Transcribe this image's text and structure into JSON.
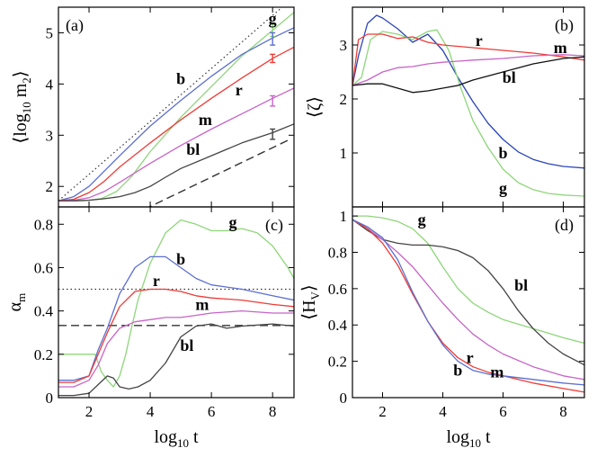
{
  "colors": {
    "g": "#8ed67a",
    "b": "#5b6fd0",
    "r": "#ee3b36",
    "m": "#c764c7",
    "bl": "#444444",
    "b_dark": "#2a44b8",
    "g_dark": "#4cc23c",
    "bl_dark": "#111111"
  },
  "chart_data": [
    {
      "panel": "a",
      "type": "line",
      "panel_label": "(a)",
      "ylabel": "⟨log",
      "ylabel_sub": "10",
      "ylabel_rest": " m",
      "ylabel_sub2": "2",
      "ylabel_end": "⟩",
      "xlim": [
        1,
        8.7
      ],
      "ylim": [
        1.6,
        5.5
      ],
      "yticks": [
        "2",
        "3",
        "4",
        "5"
      ],
      "ytick_values": [
        2,
        3,
        4,
        5
      ],
      "xtick_values": [
        2,
        4,
        6,
        8
      ],
      "series": [
        {
          "key": "dotted",
          "x": [
            1,
            8.7
          ],
          "y": [
            1.72,
            5.7
          ]
        },
        {
          "key": "dashed",
          "x": [
            3.8,
            8.5
          ],
          "y": [
            1.55,
            2.9
          ]
        },
        {
          "key": "g",
          "name": "g",
          "x": [
            1,
            1.8,
            2.4,
            2.9,
            3.4,
            4.0,
            5.0,
            6.0,
            7.0,
            8.0,
            8.7
          ],
          "y": [
            1.72,
            1.72,
            1.76,
            1.9,
            2.2,
            2.68,
            3.35,
            3.95,
            4.55,
            5.05,
            5.4
          ]
        },
        {
          "key": "b",
          "name": "b",
          "x": [
            1,
            1.5,
            2.0,
            2.5,
            3.0,
            4.0,
            5.0,
            6.0,
            7.0,
            8.0,
            8.7
          ],
          "y": [
            1.72,
            1.8,
            2.0,
            2.3,
            2.6,
            3.18,
            3.68,
            4.15,
            4.58,
            4.9,
            5.1
          ]
        },
        {
          "key": "r",
          "name": "r",
          "x": [
            1,
            1.5,
            2.0,
            2.5,
            3.0,
            4.0,
            5.0,
            6.0,
            7.0,
            8.0,
            8.7
          ],
          "y": [
            1.72,
            1.75,
            1.88,
            2.1,
            2.38,
            2.85,
            3.3,
            3.72,
            4.12,
            4.5,
            4.72
          ]
        },
        {
          "key": "m",
          "name": "m",
          "x": [
            1,
            1.5,
            2.0,
            2.5,
            3.0,
            4.0,
            5.0,
            6.0,
            7.0,
            8.0,
            8.7
          ],
          "y": [
            1.72,
            1.73,
            1.78,
            1.9,
            2.08,
            2.45,
            2.8,
            3.12,
            3.42,
            3.72,
            3.92
          ]
        },
        {
          "key": "bl",
          "name": "bl",
          "x": [
            1,
            1.5,
            2.0,
            2.5,
            3.0,
            3.5,
            4.0,
            4.5,
            5.0,
            6.0,
            7.0,
            8.0,
            8.7
          ],
          "y": [
            1.72,
            1.72,
            1.73,
            1.76,
            1.8,
            1.88,
            2.0,
            2.18,
            2.35,
            2.6,
            2.85,
            3.05,
            3.22
          ]
        }
      ],
      "error_bars": [
        {
          "key": "g",
          "x": 8.0,
          "y": 5.05,
          "err": 0.12
        },
        {
          "key": "b",
          "x": 8.0,
          "y": 4.88,
          "err": 0.12
        },
        {
          "key": "r",
          "x": 8.0,
          "y": 4.5,
          "err": 0.08
        },
        {
          "key": "m",
          "x": 8.0,
          "y": 3.67,
          "err": 0.1
        },
        {
          "key": "bl",
          "x": 8.0,
          "y": 3.02,
          "err": 0.1
        }
      ],
      "labels": [
        {
          "text": "g",
          "x": 8.0,
          "y": 5.28
        },
        {
          "text": "b",
          "x": 5.0,
          "y": 4.1
        },
        {
          "text": "r",
          "x": 6.9,
          "y": 3.88
        },
        {
          "text": "m",
          "x": 5.8,
          "y": 3.3
        },
        {
          "text": "bl",
          "x": 5.4,
          "y": 2.72
        }
      ]
    },
    {
      "panel": "b",
      "type": "line",
      "panel_label": "(b)",
      "ylabel": "⟨ζ⟩",
      "xlim": [
        1,
        8.7
      ],
      "ylim": [
        0,
        3.7
      ],
      "yticks": [
        "1",
        "2",
        "3"
      ],
      "ytick_values": [
        1,
        2,
        3
      ],
      "xtick_values": [
        2,
        4,
        6,
        8
      ],
      "series": [
        {
          "key": "b",
          "name": "b",
          "x": [
            1,
            1.2,
            1.5,
            1.8,
            2.0,
            2.5,
            3.0,
            3.5,
            4.0,
            4.5,
            5.0,
            5.5,
            6.0,
            6.5,
            7.0,
            7.5,
            8.0,
            8.7
          ],
          "y": [
            2.25,
            2.8,
            3.4,
            3.55,
            3.5,
            3.3,
            3.05,
            3.2,
            2.9,
            2.4,
            1.95,
            1.55,
            1.25,
            1.02,
            0.88,
            0.8,
            0.75,
            0.72
          ]
        },
        {
          "key": "g",
          "name": "g",
          "x": [
            1,
            1.3,
            1.6,
            2.0,
            2.5,
            3.0,
            3.5,
            3.8,
            4.2,
            4.6,
            5.0,
            5.5,
            6.0,
            6.5,
            7.0,
            7.5,
            8.0,
            8.7
          ],
          "y": [
            2.25,
            2.4,
            3.1,
            3.25,
            3.2,
            3.1,
            3.25,
            3.28,
            2.9,
            2.2,
            1.6,
            1.1,
            0.7,
            0.45,
            0.32,
            0.25,
            0.22,
            0.2
          ]
        },
        {
          "key": "r",
          "name": "r",
          "x": [
            1,
            1.2,
            1.5,
            2.0,
            2.5,
            3.0,
            3.5,
            4.0,
            5.0,
            6.0,
            7.0,
            8.0,
            8.7
          ],
          "y": [
            2.25,
            3.1,
            3.2,
            3.2,
            3.12,
            3.15,
            3.05,
            3.0,
            2.95,
            2.9,
            2.85,
            2.78,
            2.72
          ]
        },
        {
          "key": "m",
          "name": "m",
          "x": [
            1,
            1.5,
            2.0,
            2.5,
            3.0,
            3.5,
            4.0,
            5.0,
            6.0,
            7.0,
            8.0,
            8.7
          ],
          "y": [
            2.25,
            2.35,
            2.5,
            2.58,
            2.6,
            2.65,
            2.68,
            2.72,
            2.75,
            2.8,
            2.82,
            2.8
          ]
        },
        {
          "key": "bl",
          "name": "bl",
          "x": [
            1,
            1.5,
            2.0,
            2.5,
            3.0,
            3.5,
            4.0,
            4.5,
            5.0,
            6.0,
            7.0,
            8.0,
            8.7
          ],
          "y": [
            2.25,
            2.28,
            2.28,
            2.2,
            2.12,
            2.15,
            2.2,
            2.25,
            2.35,
            2.5,
            2.65,
            2.75,
            2.78
          ]
        }
      ],
      "labels": [
        {
          "text": "r",
          "x": 5.2,
          "y": 3.08
        },
        {
          "text": "m",
          "x": 7.9,
          "y": 2.95
        },
        {
          "text": "bl",
          "x": 6.2,
          "y": 2.4
        },
        {
          "text": "b",
          "x": 6.0,
          "y": 1.0
        },
        {
          "text": "g",
          "x": 6.0,
          "y": 0.35
        }
      ]
    },
    {
      "panel": "c",
      "type": "line",
      "panel_label": "(c)",
      "ylabel": "α",
      "ylabel_sub": "m",
      "xlabel": "log",
      "xlabel_sub": "10",
      "xlabel_rest": " t",
      "xlim": [
        1,
        8.7
      ],
      "ylim": [
        0,
        0.88
      ],
      "yticks": [
        "0",
        "0.2",
        "0.4",
        "0.6",
        "0.8"
      ],
      "ytick_values": [
        0,
        0.2,
        0.4,
        0.6,
        0.8
      ],
      "xticks": [
        "2",
        "4",
        "6",
        "8"
      ],
      "xtick_values": [
        2,
        4,
        6,
        8
      ],
      "series": [
        {
          "key": "dotted",
          "x": [
            1,
            8.7
          ],
          "y": [
            0.5,
            0.5
          ]
        },
        {
          "key": "dashed",
          "x": [
            1,
            8.7
          ],
          "y": [
            0.333,
            0.333
          ]
        },
        {
          "key": "g",
          "name": "g",
          "x": [
            1,
            1.5,
            2.0,
            2.2,
            2.4,
            2.6,
            2.8,
            3.0,
            3.2,
            3.4,
            3.6,
            4.0,
            4.5,
            5.0,
            5.5,
            6.0,
            6.5,
            7.0,
            7.5,
            8.0,
            8.5,
            8.7
          ],
          "y": [
            0.2,
            0.2,
            0.2,
            0.2,
            0.12,
            0.08,
            0.05,
            0.1,
            0.2,
            0.33,
            0.45,
            0.62,
            0.76,
            0.82,
            0.8,
            0.77,
            0.77,
            0.78,
            0.76,
            0.7,
            0.6,
            0.55
          ]
        },
        {
          "key": "b",
          "name": "b",
          "x": [
            1,
            1.5,
            2.0,
            2.3,
            2.6,
            3.0,
            3.5,
            4.0,
            4.5,
            5.0,
            5.5,
            6.0,
            7.0,
            8.0,
            8.7
          ],
          "y": [
            0.08,
            0.08,
            0.1,
            0.22,
            0.32,
            0.48,
            0.6,
            0.65,
            0.65,
            0.6,
            0.55,
            0.52,
            0.5,
            0.47,
            0.45
          ]
        },
        {
          "key": "r",
          "name": "r",
          "x": [
            1,
            1.5,
            2.0,
            2.3,
            2.6,
            3.0,
            3.5,
            4.0,
            4.5,
            5.0,
            5.5,
            6.0,
            7.0,
            8.0,
            8.7
          ],
          "y": [
            0.07,
            0.07,
            0.1,
            0.2,
            0.3,
            0.42,
            0.49,
            0.5,
            0.5,
            0.49,
            0.47,
            0.46,
            0.45,
            0.43,
            0.42
          ]
        },
        {
          "key": "m",
          "name": "m",
          "x": [
            1,
            1.5,
            2.0,
            2.3,
            2.6,
            3.0,
            3.5,
            4.0,
            4.5,
            5.0,
            5.5,
            6.0,
            7.0,
            8.0,
            8.7
          ],
          "y": [
            0.05,
            0.05,
            0.08,
            0.15,
            0.25,
            0.32,
            0.35,
            0.36,
            0.37,
            0.37,
            0.38,
            0.39,
            0.4,
            0.39,
            0.39
          ]
        },
        {
          "key": "bl",
          "name": "bl",
          "x": [
            1,
            1.5,
            2.0,
            2.3,
            2.6,
            2.8,
            3.0,
            3.3,
            3.6,
            4.0,
            4.5,
            5.0,
            5.5,
            6.0,
            6.5,
            7.0,
            8.0,
            8.7
          ],
          "y": [
            0.01,
            0.01,
            0.02,
            0.06,
            0.1,
            0.09,
            0.05,
            0.04,
            0.05,
            0.08,
            0.16,
            0.28,
            0.33,
            0.34,
            0.32,
            0.33,
            0.34,
            0.33
          ]
        }
      ],
      "labels": [
        {
          "text": "g",
          "x": 6.7,
          "y": 0.81
        },
        {
          "text": "b",
          "x": 5.0,
          "y": 0.64
        },
        {
          "text": "r",
          "x": 4.2,
          "y": 0.54
        },
        {
          "text": "m",
          "x": 5.7,
          "y": 0.43
        },
        {
          "text": "bl",
          "x": 5.2,
          "y": 0.24
        }
      ]
    },
    {
      "panel": "d",
      "type": "line",
      "panel_label": "(d)",
      "ylabel": "⟨H",
      "ylabel_sub": "V",
      "ylabel_end": "⟩",
      "xlabel": "log",
      "xlabel_sub": "10",
      "xlabel_rest": " t",
      "xlim": [
        1,
        8.7
      ],
      "ylim": [
        0,
        1.05
      ],
      "yticks": [
        "0",
        "0.2",
        "0.4",
        "0.6",
        "0.8",
        "1"
      ],
      "ytick_values": [
        0,
        0.2,
        0.4,
        0.6,
        0.8,
        1
      ],
      "xticks": [
        "2",
        "4",
        "6",
        "8"
      ],
      "xtick_values": [
        2,
        4,
        6,
        8
      ],
      "series": [
        {
          "key": "g",
          "name": "g",
          "x": [
            1,
            1.5,
            2.0,
            2.5,
            3.0,
            3.5,
            4.0,
            4.5,
            5.0,
            5.5,
            6.0,
            7.0,
            8.0,
            8.7
          ],
          "y": [
            1.0,
            1.0,
            0.99,
            0.97,
            0.93,
            0.85,
            0.72,
            0.6,
            0.52,
            0.47,
            0.43,
            0.38,
            0.33,
            0.3
          ]
        },
        {
          "key": "bl",
          "name": "bl",
          "x": [
            1,
            1.5,
            2.0,
            2.5,
            3.0,
            3.5,
            4.0,
            4.5,
            5.0,
            5.5,
            6.0,
            6.5,
            7.0,
            7.5,
            8.0,
            8.7
          ],
          "y": [
            0.98,
            0.92,
            0.87,
            0.85,
            0.84,
            0.84,
            0.83,
            0.81,
            0.77,
            0.7,
            0.6,
            0.48,
            0.38,
            0.3,
            0.24,
            0.18
          ]
        },
        {
          "key": "m",
          "name": "m",
          "x": [
            1,
            1.5,
            2.0,
            2.5,
            3.0,
            3.5,
            4.0,
            4.5,
            5.0,
            5.5,
            6.0,
            7.0,
            8.0,
            8.7
          ],
          "y": [
            0.98,
            0.93,
            0.87,
            0.8,
            0.72,
            0.62,
            0.52,
            0.43,
            0.35,
            0.29,
            0.24,
            0.17,
            0.12,
            0.1
          ]
        },
        {
          "key": "r",
          "name": "r",
          "x": [
            1,
            1.5,
            2.0,
            2.5,
            3.0,
            3.5,
            4.0,
            4.5,
            5.0,
            5.5,
            6.0,
            7.0,
            8.0,
            8.7
          ],
          "y": [
            0.98,
            0.93,
            0.85,
            0.73,
            0.57,
            0.42,
            0.3,
            0.22,
            0.17,
            0.14,
            0.12,
            0.08,
            0.05,
            0.03
          ]
        },
        {
          "key": "b",
          "name": "b",
          "x": [
            1,
            1.5,
            2.0,
            2.5,
            3.0,
            3.5,
            4.0,
            4.5,
            5.0,
            5.5,
            6.0,
            7.0,
            8.0,
            8.7
          ],
          "y": [
            0.98,
            0.94,
            0.88,
            0.76,
            0.58,
            0.42,
            0.29,
            0.2,
            0.15,
            0.13,
            0.12,
            0.1,
            0.08,
            0.07
          ]
        }
      ],
      "labels": [
        {
          "text": "g",
          "x": 3.3,
          "y": 0.98
        },
        {
          "text": "bl",
          "x": 6.6,
          "y": 0.62
        },
        {
          "text": "r",
          "x": 4.9,
          "y": 0.22
        },
        {
          "text": "b",
          "x": 4.5,
          "y": 0.15
        },
        {
          "text": "m",
          "x": 5.8,
          "y": 0.14
        }
      ]
    }
  ]
}
